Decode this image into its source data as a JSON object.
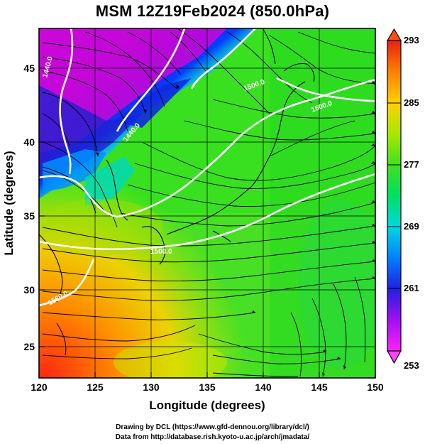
{
  "title": "MSM 12Z19Feb2024 (850.0hPa)",
  "axes": {
    "xlabel": "Longitude (degrees)",
    "ylabel": "Latitude  (degrees)",
    "xticks": [
      "120",
      "125",
      "130",
      "135",
      "140",
      "145",
      "150"
    ],
    "yticks": [
      "45",
      "40",
      "35",
      "30",
      "25"
    ],
    "xlim": [
      120,
      150
    ],
    "ylim": [
      22.4,
      47.6
    ]
  },
  "colorbar": {
    "ticks": [
      "293",
      "285",
      "277",
      "269",
      "261",
      "253"
    ],
    "range": [
      253,
      293
    ],
    "colors": [
      "#ff00ff",
      "#4a00e0",
      "#0030ff",
      "#00c8ff",
      "#00e070",
      "#30e000",
      "#c8e800",
      "#ffc000",
      "#ff7000",
      "#e82000"
    ]
  },
  "contours": {
    "labels": [
      "1440.0",
      "1440.0",
      "1500.0",
      "1500.0",
      "1500.0",
      "1560.0"
    ],
    "color": "#ffffff"
  },
  "credits": {
    "line1": "Drawing by DCL (https://www.gfd-dennou.org/library/dcl/)",
    "line2": "Data from http://database.rish.kyoto-u.ac.jp/arch/jmadata/"
  },
  "chart_data": {
    "type": "heatmap",
    "variable": "temperature (K) with wind streamlines and geopotential height contours",
    "level": "850.0hPa",
    "time": "12Z19Feb2024",
    "color_range": [
      253,
      293
    ],
    "colorbar_ticks": [
      293,
      285,
      277,
      269,
      261,
      253
    ],
    "x_range": [
      120,
      150
    ],
    "y_range": [
      22.4,
      47.6
    ],
    "contour_labels": [
      "1440.0",
      "1500.0",
      "1560.0"
    ]
  }
}
